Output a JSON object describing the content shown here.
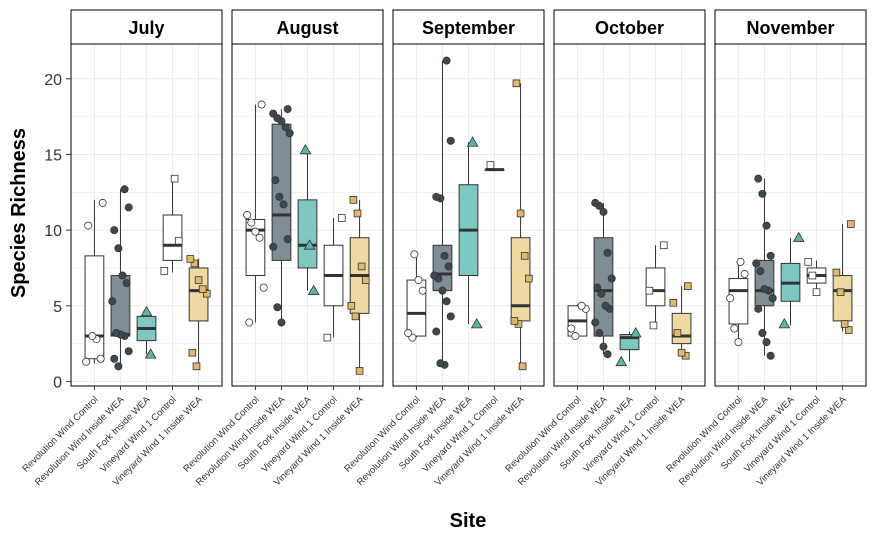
{
  "chart_data": {
    "type": "boxplot",
    "ylabel": "Species Richness",
    "xlabel": "Site",
    "ylim": [
      -0.3,
      22.3
    ],
    "yticks": [
      0,
      5,
      10,
      15,
      20
    ],
    "grid": true,
    "categories": [
      "Revolution Wind Control",
      "Revolution Wind Inside WEA",
      "South Fork Inside WEA",
      "Vineyard Wind 1 Control",
      "Vineyard Wind 1 Inside WEA"
    ],
    "category_fills": [
      "#ffffff",
      "#7f8e94",
      "#7ec8c1",
      "#ffffff",
      "#f0d9a0"
    ],
    "marker_colors": [
      "#ffffff",
      "#3b4a50",
      "#5ab5ab",
      "#ffffff",
      "#e0b96a"
    ],
    "marker_shapes": [
      "circle",
      "circle",
      "triangle",
      "square",
      "square"
    ],
    "panels": [
      {
        "title": "July",
        "boxes": [
          {
            "q1": 1.5,
            "median": 3,
            "q3": 8.3,
            "whisker_low": 1.2,
            "whisker_high": 12,
            "points": [
              1.3,
              1.5,
              2.8,
              3.0,
              10.3,
              11.8
            ]
          },
          {
            "q1": 3,
            "median": 3.1,
            "q3": 7,
            "whisker_low": 1,
            "whisker_high": 12.7,
            "points": [
              1.0,
              1.5,
              2.0,
              3.0,
              3.1,
              3.2,
              5.3,
              6.5,
              7.0,
              8.8,
              10.0,
              11.5,
              12.7
            ]
          },
          {
            "q1": 2.7,
            "median": 3.5,
            "q3": 4.3,
            "whisker_low": 1.8,
            "whisker_high": 4.7,
            "points": [
              1.8,
              4.6
            ]
          },
          {
            "q1": 8,
            "median": 9,
            "q3": 11,
            "whisker_low": 7.2,
            "whisker_high": 13.4,
            "points": [
              7.3,
              9.3,
              13.4
            ]
          },
          {
            "q1": 4,
            "median": 6,
            "q3": 7.5,
            "whisker_low": 1,
            "whisker_high": 8.1,
            "points": [
              1.0,
              1.9,
              5.8,
              6.1,
              6.7,
              7.8,
              8.1
            ]
          }
        ]
      },
      {
        "title": "August",
        "boxes": [
          {
            "q1": 7,
            "median": 10,
            "q3": 10.7,
            "whisker_low": 3.9,
            "whisker_high": 18.3,
            "points": [
              3.9,
              6.2,
              9.5,
              9.9,
              10.5,
              11.0,
              18.3
            ]
          },
          {
            "q1": 8,
            "median": 11,
            "q3": 17,
            "whisker_low": 3.9,
            "whisker_high": 18,
            "points": [
              3.9,
              4.9,
              8.9,
              9.4,
              11.7,
              12.2,
              13.3,
              16.4,
              16.8,
              17.2,
              17.4,
              17.7,
              18.0
            ]
          },
          {
            "q1": 7.5,
            "median": 9,
            "q3": 12,
            "whisker_low": 6,
            "whisker_high": 15.3,
            "points": [
              6.0,
              9.0,
              15.3
            ]
          },
          {
            "q1": 5,
            "median": 7,
            "q3": 9,
            "whisker_low": 2.9,
            "whisker_high": 10.8,
            "points": [
              2.9,
              10.8
            ]
          },
          {
            "q1": 4.5,
            "median": 7,
            "q3": 9.5,
            "whisker_low": 0.7,
            "whisker_high": 12,
            "points": [
              0.7,
              4.3,
              5.0,
              6.7,
              7.6,
              11.1,
              12.0
            ]
          }
        ]
      },
      {
        "title": "September",
        "boxes": [
          {
            "q1": 3,
            "median": 4.5,
            "q3": 6.7,
            "whisker_low": 2.9,
            "whisker_high": 8.4,
            "points": [
              2.9,
              3.2,
              6.0,
              6.7,
              8.4
            ]
          },
          {
            "q1": 6,
            "median": 7.1,
            "q3": 9,
            "whisker_low": 1.1,
            "whisker_high": 21.2,
            "points": [
              1.1,
              1.2,
              3.3,
              4.3,
              5.3,
              6.0,
              6.8,
              7.0,
              7.6,
              8.3,
              12.1,
              12.2,
              15.9,
              21.2
            ]
          },
          {
            "q1": 7,
            "median": 10,
            "q3": 13,
            "whisker_low": 3.8,
            "whisker_high": 15.8,
            "points": [
              3.8,
              15.8
            ]
          },
          {
            "q1": 14,
            "median": 14,
            "q3": 14,
            "whisker_low": 14,
            "whisker_high": 14,
            "points": [
              14.3
            ]
          },
          {
            "q1": 4,
            "median": 5,
            "q3": 9.5,
            "whisker_low": 1,
            "whisker_high": 19.7,
            "points": [
              1.0,
              3.8,
              4.0,
              6.8,
              8.3,
              11.1,
              19.7
            ]
          }
        ]
      },
      {
        "title": "October",
        "boxes": [
          {
            "q1": 3,
            "median": 4,
            "q3": 5,
            "whisker_low": 3,
            "whisker_high": 5.1,
            "points": [
              3.0,
              3.5,
              4.8,
              5.0
            ]
          },
          {
            "q1": 3,
            "median": 6,
            "q3": 9.5,
            "whisker_low": 1.8,
            "whisker_high": 11.8,
            "points": [
              1.8,
              2.3,
              3.2,
              3.9,
              4.8,
              5.0,
              5.8,
              6.2,
              6.8,
              8.5,
              11.2,
              11.6,
              11.8
            ]
          },
          {
            "q1": 2.1,
            "median": 2.9,
            "q3": 3.1,
            "whisker_low": 1.3,
            "whisker_high": 3.3,
            "points": [
              1.3,
              3.2
            ]
          },
          {
            "q1": 5,
            "median": 6,
            "q3": 7.5,
            "whisker_low": 3.7,
            "whisker_high": 9,
            "points": [
              3.7,
              6.0,
              9.0
            ]
          },
          {
            "q1": 2.5,
            "median": 3,
            "q3": 4.5,
            "whisker_low": 1.7,
            "whisker_high": 6.3,
            "points": [
              1.7,
              1.9,
              3.2,
              5.2,
              6.3
            ]
          }
        ]
      },
      {
        "title": "November",
        "boxes": [
          {
            "q1": 3.8,
            "median": 6,
            "q3": 6.8,
            "whisker_low": 2.6,
            "whisker_high": 7.9,
            "points": [
              2.6,
              3.5,
              5.5,
              7.1,
              7.9
            ]
          },
          {
            "q1": 5,
            "median": 6,
            "q3": 8,
            "whisker_low": 1.7,
            "whisker_high": 13.4,
            "points": [
              1.7,
              2.6,
              3.2,
              4.8,
              5.5,
              6.0,
              6.1,
              7.3,
              7.8,
              8.3,
              10.3,
              12.4,
              13.4
            ]
          },
          {
            "q1": 5.3,
            "median": 6.5,
            "q3": 7.8,
            "whisker_low": 3.7,
            "whisker_high": 9.5,
            "points": [
              3.8,
              9.5
            ]
          },
          {
            "q1": 6.5,
            "median": 7,
            "q3": 7.5,
            "whisker_low": 5.8,
            "whisker_high": 8,
            "points": [
              5.9,
              7.0,
              7.9
            ]
          },
          {
            "q1": 4,
            "median": 6,
            "q3": 7,
            "whisker_low": 3.3,
            "whisker_high": 10.4,
            "points": [
              3.4,
              3.8,
              5.9,
              7.2,
              10.4
            ]
          }
        ]
      }
    ]
  }
}
